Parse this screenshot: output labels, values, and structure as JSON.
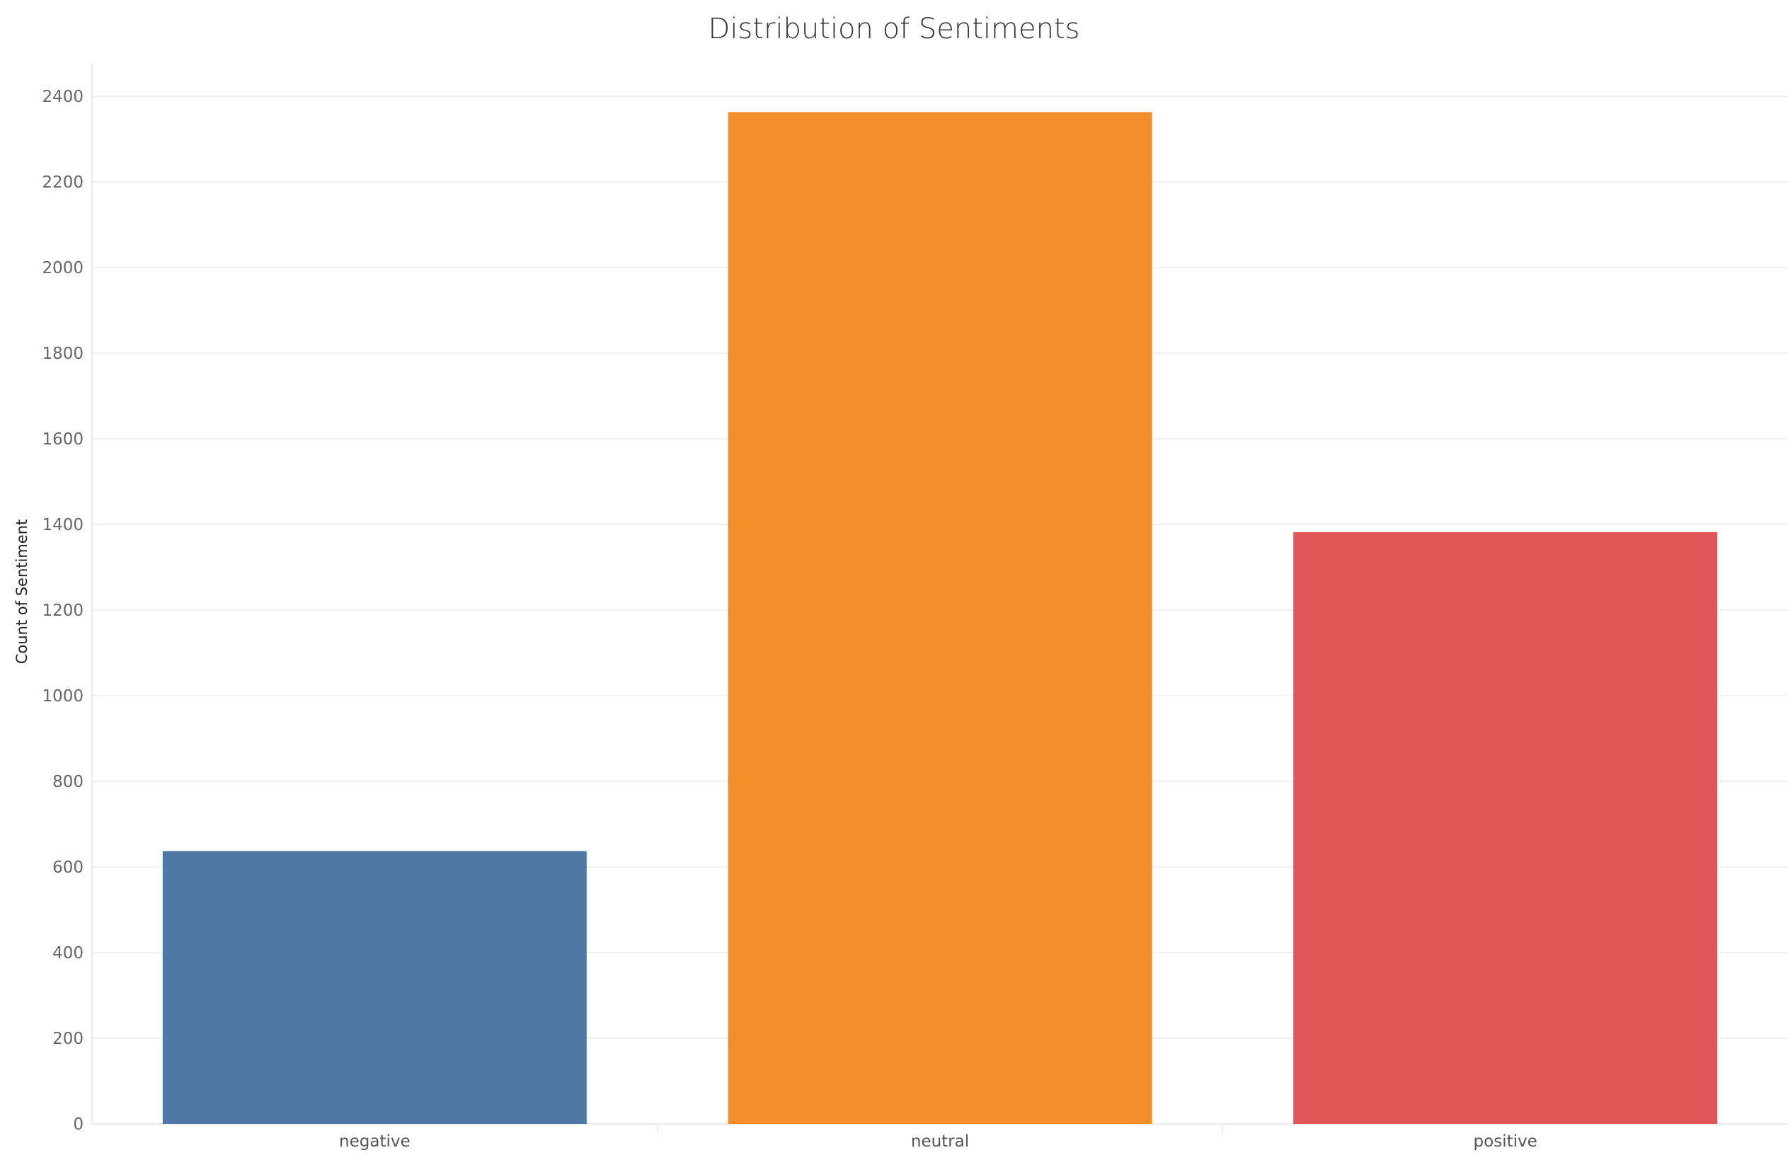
{
  "chart_data": {
    "type": "bar",
    "title": "Distribution of Sentiments",
    "xlabel": "",
    "ylabel": "Count of Sentiment",
    "categories": [
      "negative",
      "neutral",
      "positive"
    ],
    "values": [
      637,
      2363,
      1382
    ],
    "colors": [
      "#4e79a7",
      "#f28e2b",
      "#e15759"
    ],
    "yticks": [
      0,
      200,
      400,
      600,
      800,
      1000,
      1200,
      1400,
      1600,
      1800,
      2000,
      2200,
      2400
    ],
    "ylim": [
      0,
      2400
    ],
    "grid": true,
    "legend": "none"
  }
}
